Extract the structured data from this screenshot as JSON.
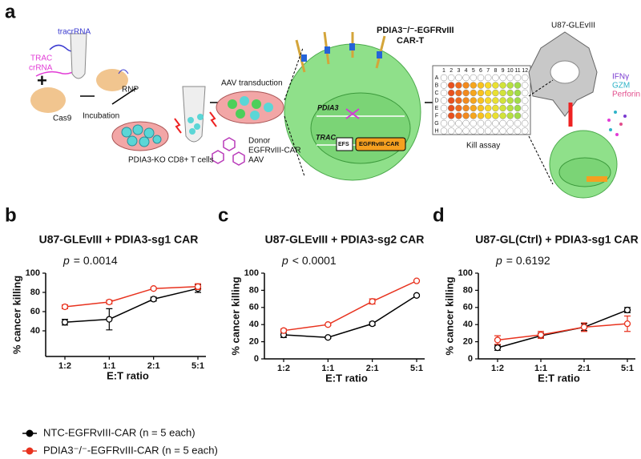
{
  "panels": {
    "a": "a",
    "b": "b",
    "c": "c",
    "d": "d"
  },
  "schematic": {
    "tracr": "tracrRNA",
    "trac": "TRAC",
    "crrna": "crRNA",
    "plus": "+",
    "cas9": "Cas9",
    "incubation": "Incubation",
    "rnp": "RNP",
    "cells": "PDIA3-KO CD8+ T cells",
    "aav_transduction": "AAV transduction",
    "donor": "Donor",
    "donor_car": "EGFRvIII-CAR",
    "donor_aav": "AAV",
    "cart_title": "PDIA3⁻/⁻-EGFRvIII",
    "cart_title2": "CAR-T",
    "pdia3": "PDIA3",
    "trac_locus": "TRAC",
    "efs": "EFS",
    "car_box": "EGFRvIII-CAR",
    "plate_cols": [
      "1",
      "2",
      "3",
      "4",
      "5",
      "6",
      "7",
      "8",
      "9",
      "10",
      "11",
      "12"
    ],
    "plate_rows": [
      "A",
      "B",
      "C",
      "D",
      "E",
      "F",
      "G",
      "H"
    ],
    "kill_assay": "Kill assay",
    "target": "U87-GLEvIII",
    "ifng": "IFNγ",
    "gzm": "GZM",
    "perforin": "Perforin"
  },
  "legend": {
    "names": [
      "NTC-EGFRvIII-CAR (n = 5 each)",
      "PDIA3⁻/⁻-EGFRvIII-CAR (n = 5 each)"
    ]
  },
  "chart_data": [
    {
      "type": "line",
      "title": "U87-GLEvIII + PDIA3-sg1 CAR",
      "annotation_symbol": "p",
      "annotation": "= 0.0014",
      "x_label": "E:T ratio",
      "y_label": "% cancer killing",
      "categories": [
        "1:2",
        "1:1",
        "2:1",
        "5:1"
      ],
      "ylim": [
        30,
        100
      ],
      "yticks": [
        40,
        60,
        80,
        100
      ],
      "series": [
        {
          "name": "NTC-EGFRvIII-CAR (n = 5 each)",
          "color": "#000000",
          "values": [
            49,
            52,
            73,
            84
          ],
          "errors": [
            3,
            11,
            2,
            4
          ]
        },
        {
          "name": "PDIA3⁻/⁻-EGFRvIII-CAR (n = 5 each)",
          "color": "#e8321e",
          "values": [
            65,
            70,
            84,
            86
          ],
          "errors": [
            2,
            2,
            1,
            3
          ]
        }
      ]
    },
    {
      "type": "line",
      "title": "U87-GLEvIII + PDIA3-sg2 CAR",
      "annotation_symbol": "p",
      "annotation": "< 0.0001",
      "x_label": "E:T ratio",
      "y_label": "% cancer killing",
      "categories": [
        "1:2",
        "1:1",
        "2:1",
        "5:1"
      ],
      "ylim": [
        0,
        100
      ],
      "yticks": [
        0,
        20,
        40,
        60,
        80,
        100
      ],
      "series": [
        {
          "name": "NTC-EGFRvIII-CAR (n = 5 each)",
          "color": "#000000",
          "values": [
            28,
            25,
            41,
            74
          ],
          "errors": [
            3,
            1,
            2,
            1
          ]
        },
        {
          "name": "PDIA3⁻/⁻-EGFRvIII-CAR (n = 5 each)",
          "color": "#e8321e",
          "values": [
            33,
            40,
            67,
            91
          ],
          "errors": [
            2,
            1,
            3,
            1
          ]
        }
      ]
    },
    {
      "type": "line",
      "title": "U87-GL(Ctrl) + PDIA3-sg1 CAR",
      "annotation_symbol": "p",
      "annotation": "= 0.6192",
      "x_label": "E:T ratio",
      "y_label": "% cancer killing",
      "categories": [
        "1:2",
        "1:1",
        "2:1",
        "5:1"
      ],
      "ylim": [
        0,
        100
      ],
      "yticks": [
        0,
        20,
        40,
        60,
        80,
        100
      ],
      "series": [
        {
          "name": "NTC-EGFRvIII-CAR (n = 5 each)",
          "color": "#000000",
          "values": [
            13,
            27,
            37,
            57
          ],
          "errors": [
            3,
            3,
            4,
            3
          ]
        },
        {
          "name": "PDIA3⁻/⁻-EGFRvIII-CAR (n = 5 each)",
          "color": "#e8321e",
          "values": [
            22,
            28,
            37,
            41
          ],
          "errors": [
            5,
            4,
            5,
            9
          ]
        }
      ]
    }
  ]
}
